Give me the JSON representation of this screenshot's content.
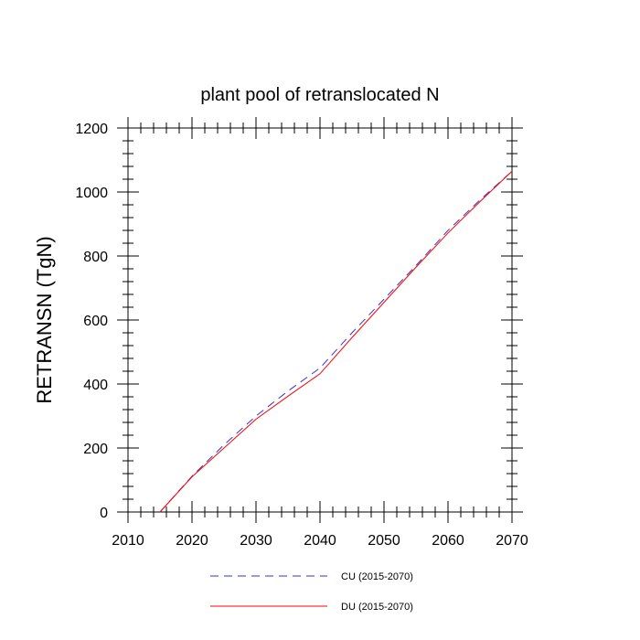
{
  "chart_data": {
    "type": "line",
    "title": "plant pool of retranslocated N",
    "xlabel": "",
    "ylabel": "RETRANSN  (TgN)",
    "xlim": [
      2010,
      2070
    ],
    "ylim": [
      0,
      1200
    ],
    "xticks": [
      2010,
      2020,
      2030,
      2040,
      2050,
      2060,
      2070
    ],
    "yticks": [
      0,
      200,
      400,
      600,
      800,
      1000,
      1200
    ],
    "x": [
      2015,
      2020,
      2025,
      2030,
      2035,
      2040,
      2045,
      2050,
      2055,
      2060,
      2065,
      2070
    ],
    "series": [
      {
        "name": "CU (2015-2070)",
        "color": "#3333cc",
        "dash": true,
        "values": [
          0,
          112,
          210,
          300,
          378,
          450,
          560,
          665,
          770,
          880,
          975,
          1065
        ]
      },
      {
        "name": "DU (2015-2070)",
        "color": "#ff0000",
        "dash": false,
        "values": [
          0,
          110,
          200,
          290,
          362,
          432,
          545,
          655,
          765,
          872,
          970,
          1065
        ]
      }
    ],
    "legend": "bottom"
  }
}
